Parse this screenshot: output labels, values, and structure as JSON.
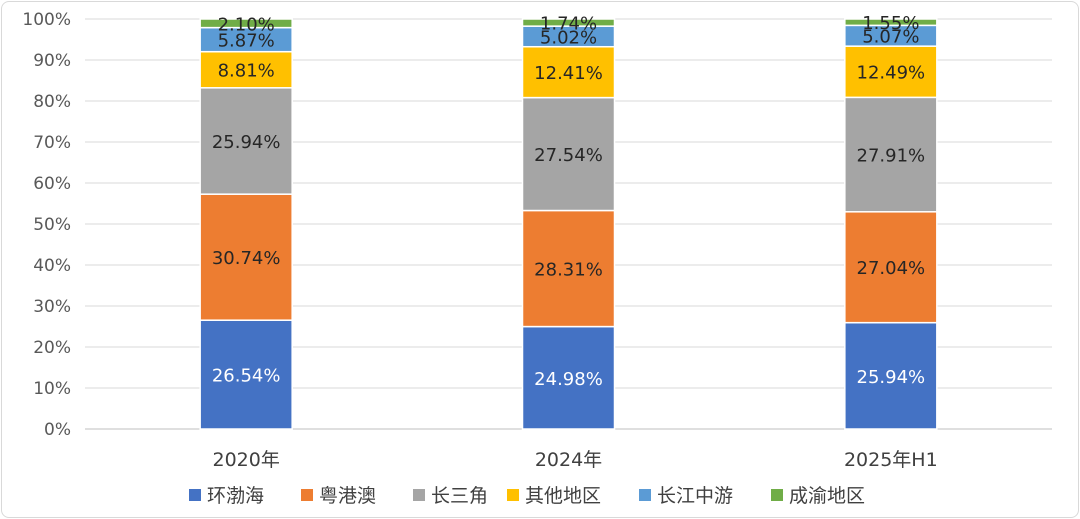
{
  "chart_data": {
    "type": "bar",
    "stacked": true,
    "percent": true,
    "categories": [
      "2020年",
      "2024年",
      "2025年H1"
    ],
    "series": [
      {
        "name": "环渤海",
        "color": "#4472C4",
        "values": [
          26.54,
          24.98,
          25.94
        ],
        "labels": [
          "26.54%",
          "24.98%",
          "25.94%"
        ],
        "label_color": "#ffffff"
      },
      {
        "name": "粤港澳",
        "color": "#ED7D31",
        "values": [
          30.74,
          28.31,
          27.04
        ],
        "labels": [
          "30.74%",
          "28.31%",
          "27.04%"
        ],
        "label_color": "#262626"
      },
      {
        "name": "长三角",
        "color": "#A5A5A5",
        "values": [
          25.94,
          27.54,
          27.91
        ],
        "labels": [
          "25.94%",
          "27.54%",
          "27.91%"
        ],
        "label_color": "#262626"
      },
      {
        "name": "其他地区",
        "color": "#FFC000",
        "values": [
          8.81,
          12.41,
          12.49
        ],
        "labels": [
          "8.81%",
          "12.41%",
          "12.49%"
        ],
        "label_color": "#262626"
      },
      {
        "name": "长江中游",
        "color": "#5B9BD5",
        "values": [
          5.87,
          5.02,
          5.07
        ],
        "labels": [
          "5.87%",
          "5.02%",
          "5.07%"
        ],
        "label_color": "#262626"
      },
      {
        "name": "成渝地区",
        "color": "#70AD47",
        "values": [
          2.1,
          1.74,
          1.55
        ],
        "labels": [
          "2.10%",
          "1.74%",
          "1.55%"
        ],
        "label_color": "#262626"
      }
    ],
    "ylim": [
      0,
      100
    ],
    "yticks": [
      "0%",
      "10%",
      "20%",
      "30%",
      "40%",
      "50%",
      "60%",
      "70%",
      "80%",
      "90%",
      "100%"
    ],
    "grid": true,
    "legend_position": "bottom",
    "title": "",
    "xlabel": "",
    "ylabel": ""
  }
}
